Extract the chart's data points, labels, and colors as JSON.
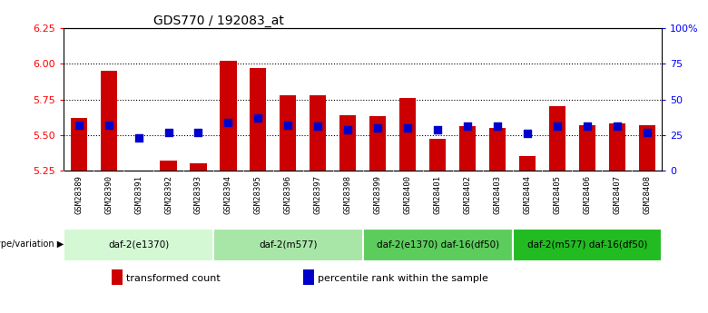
{
  "title": "GDS770 / 192083_at",
  "samples": [
    "GSM28389",
    "GSM28390",
    "GSM28391",
    "GSM28392",
    "GSM28393",
    "GSM28394",
    "GSM28395",
    "GSM28396",
    "GSM28397",
    "GSM28398",
    "GSM28399",
    "GSM28400",
    "GSM28401",
    "GSM28402",
    "GSM28403",
    "GSM28404",
    "GSM28405",
    "GSM28406",
    "GSM28407",
    "GSM28408"
  ],
  "bar_heights": [
    5.62,
    5.95,
    5.25,
    5.32,
    5.3,
    6.02,
    5.97,
    5.78,
    5.78,
    5.64,
    5.63,
    5.76,
    5.47,
    5.56,
    5.55,
    5.35,
    5.7,
    5.57,
    5.58,
    5.57
  ],
  "percentile_values": [
    5.57,
    5.57,
    5.48,
    5.52,
    5.52,
    5.59,
    5.62,
    5.57,
    5.56,
    5.54,
    5.55,
    5.55,
    5.54,
    5.56,
    5.56,
    5.51,
    5.56,
    5.56,
    5.56,
    5.52
  ],
  "ymin": 5.25,
  "ymax": 6.25,
  "yticks": [
    5.25,
    5.5,
    5.75,
    6.0,
    6.25
  ],
  "right_yticks": [
    0,
    25,
    50,
    75,
    100
  ],
  "right_ytick_labels": [
    "0",
    "25",
    "50",
    "75",
    "100%"
  ],
  "groups": [
    {
      "label": "daf-2(e1370)",
      "start": 0,
      "end": 4,
      "color": "#d4f7d4"
    },
    {
      "label": "daf-2(m577)",
      "start": 5,
      "end": 9,
      "color": "#a8e6a8"
    },
    {
      "label": "daf-2(e1370) daf-16(df50)",
      "start": 10,
      "end": 14,
      "color": "#5ccc5c"
    },
    {
      "label": "daf-2(m577) daf-16(df50)",
      "start": 15,
      "end": 19,
      "color": "#22bb22"
    }
  ],
  "bar_color": "#cc0000",
  "dot_color": "#0000cc",
  "bar_width": 0.55,
  "genotype_label": "genotype/variation",
  "legend_items": [
    {
      "label": "transformed count",
      "color": "#cc0000"
    },
    {
      "label": "percentile rank within the sample",
      "color": "#0000cc"
    }
  ]
}
